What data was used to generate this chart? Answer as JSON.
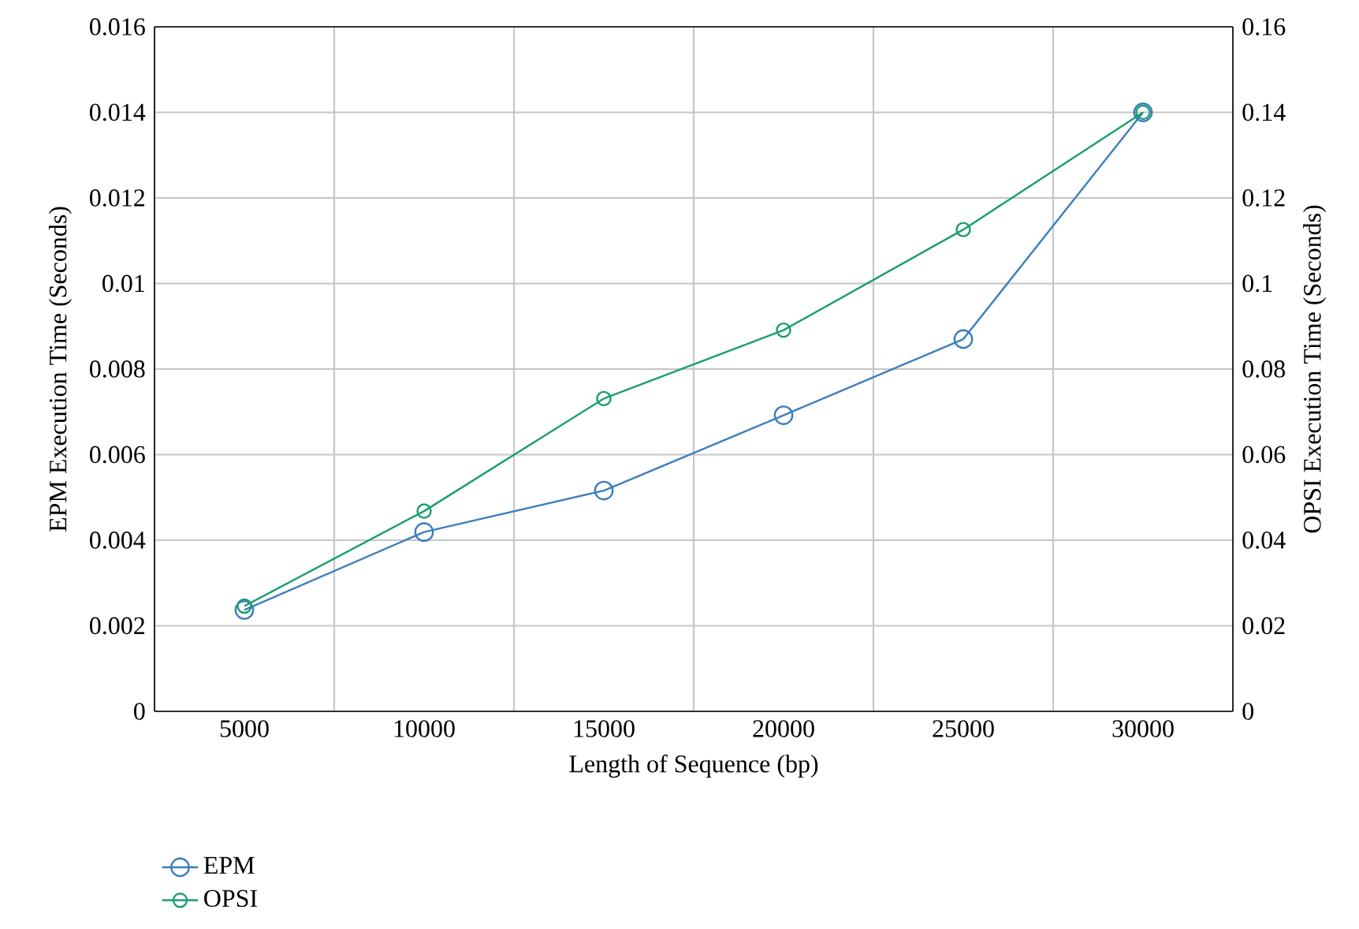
{
  "chart_data": {
    "type": "line",
    "xlabel": "Length of Sequence (bp)",
    "ylabel": "EPM Execution Time (Seconds)",
    "y2label": "OPSI Execution Time (Seconds)",
    "categories": [
      "5000",
      "10000",
      "15000",
      "20000",
      "25000",
      "30000"
    ],
    "series": [
      {
        "name": "EPM",
        "color": "#3c7ebf",
        "values": [
          0.00237,
          0.00419,
          0.00516,
          0.00692,
          0.0087,
          0.014
        ]
      },
      {
        "name": "OPSI",
        "color": "#1a9e6e",
        "axis": "y2",
        "values": [
          0.0246,
          0.0468,
          0.0731,
          0.0891,
          0.1126,
          0.14
        ]
      }
    ],
    "ylim": [
      0,
      0.016
    ],
    "yticks": [
      0,
      0.002,
      0.004,
      0.006,
      0.008,
      0.01,
      0.012,
      0.014,
      0.016
    ],
    "y2lim": [
      0,
      0.16
    ],
    "y2ticks": [
      0,
      0.02,
      0.04,
      0.06,
      0.08,
      0.1,
      0.12,
      0.14,
      0.16
    ],
    "grid": true,
    "legend": "bottom left",
    "marker": "circle",
    "line_style": "solid"
  }
}
